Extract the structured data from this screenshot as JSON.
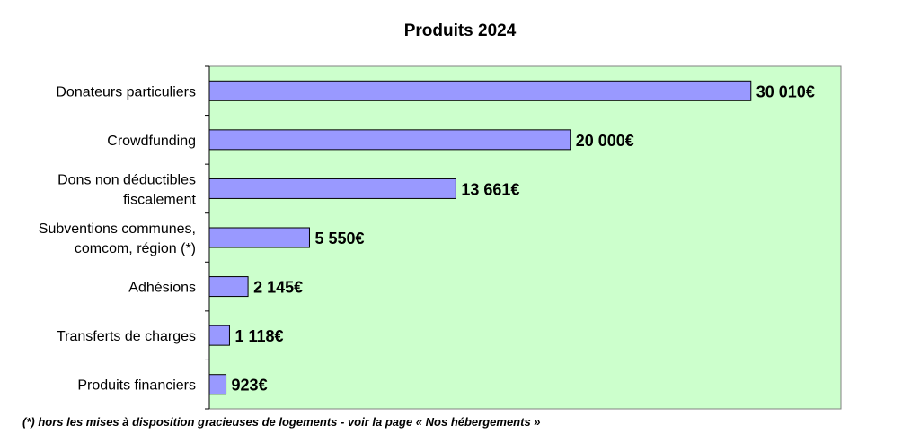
{
  "chart_data": {
    "type": "bar",
    "orientation": "horizontal",
    "title": "Produits 2024",
    "xlabel": "",
    "ylabel": "",
    "categories": [
      [
        "Donateurs particuliers"
      ],
      [
        "Crowdfunding"
      ],
      [
        "Dons non déductibles",
        "fiscalement"
      ],
      [
        "Subventions communes,",
        "comcom, région (*)"
      ],
      [
        "Adhésions"
      ],
      [
        "Transferts de charges"
      ],
      [
        "Produits financiers"
      ]
    ],
    "values": [
      30010,
      20000,
      13661,
      5550,
      2145,
      1118,
      923
    ],
    "value_labels": [
      "30 010€",
      "20 000€",
      "13 661€",
      "5 550€",
      "2 145€",
      "1 118€",
      "923€"
    ],
    "xlim": [
      0,
      35000
    ],
    "grid": false,
    "legend": "none",
    "colors": {
      "plot_background": "#ccffcc",
      "bar_fill": "#9999ff",
      "bar_stroke": "#000000"
    }
  },
  "footnote": "(*) hors les mises à disposition gracieuses de logements - voir la page « Nos hébergements »"
}
